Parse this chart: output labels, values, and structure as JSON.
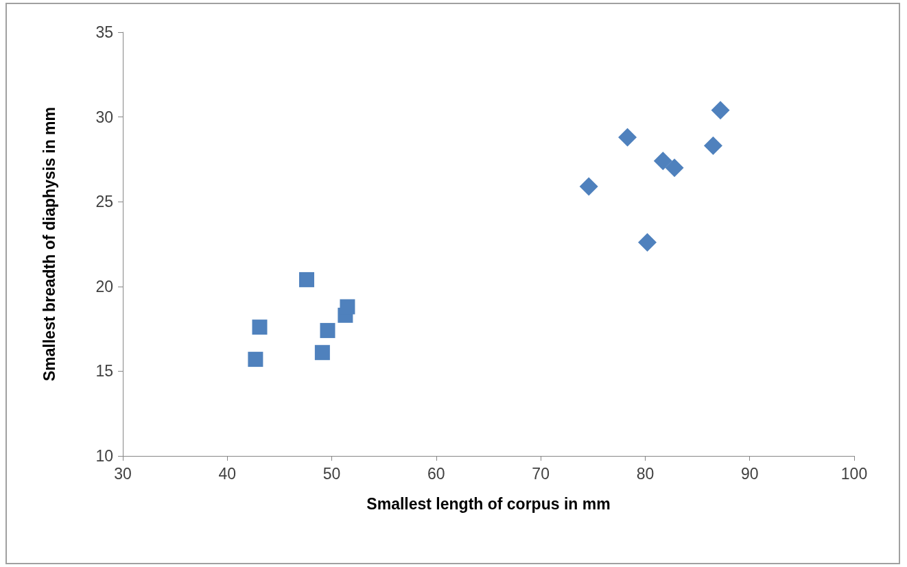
{
  "chart_data": {
    "type": "scatter",
    "xlabel": "Smallest length of corpus in mm",
    "ylabel": "Smallest breadth of diaphysis in mm",
    "xlim": [
      30,
      100
    ],
    "xticks": [
      30,
      40,
      50,
      60,
      70,
      80,
      90,
      100
    ],
    "ylim": [
      10,
      35
    ],
    "yticks": [
      10,
      15,
      20,
      25,
      30,
      35
    ],
    "grid": false,
    "series": [
      {
        "color": "#4f81bd",
        "marker": "square",
        "x": [
          42.7,
          43.1,
          47.6,
          49.6,
          49.1,
          51.3,
          51.5
        ],
        "values": [
          15.7,
          17.6,
          20.4,
          17.4,
          16.1,
          18.3,
          18.8
        ]
      },
      {
        "color": "#4f81bd",
        "marker": "diamond",
        "x": [
          74.6,
          78.3,
          80.2,
          81.7,
          82.8,
          86.5,
          87.2
        ],
        "values": [
          25.9,
          28.8,
          22.6,
          27.4,
          27.0,
          28.3,
          30.4
        ]
      }
    ]
  }
}
